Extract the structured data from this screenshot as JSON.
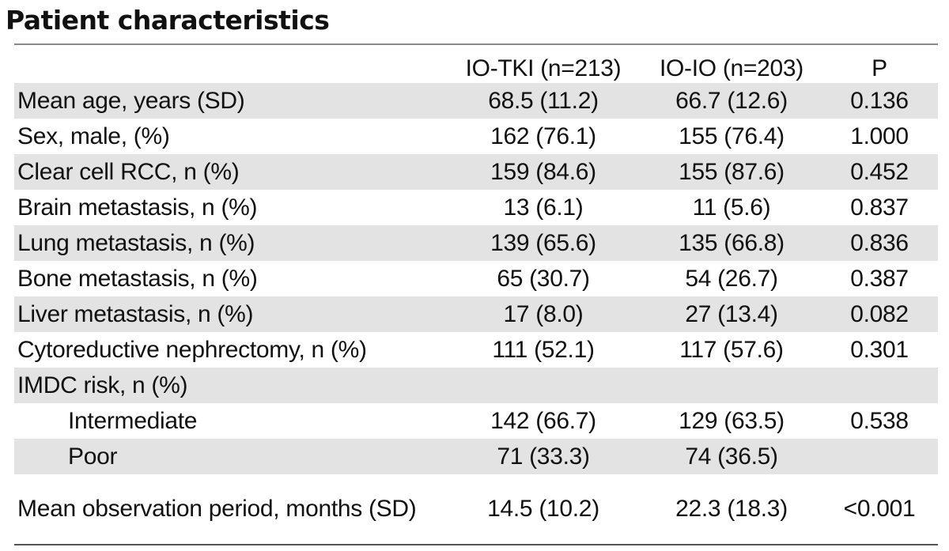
{
  "title": "Patient characteristics",
  "table": {
    "headers": [
      "",
      "IO-TKI (n=213)",
      "IO-IO (n=203)",
      "P"
    ],
    "rows": [
      {
        "label": "Mean age, years (SD)",
        "io_tki": "68.5 (11.2)",
        "io_io": "66.7 (12.6)",
        "p": "0.136"
      },
      {
        "label": "Sex, male, (%)",
        "io_tki": "162 (76.1)",
        "io_io": "155 (76.4)",
        "p": "1.000"
      },
      {
        "label": "Clear cell RCC, n (%)",
        "io_tki": "159 (84.6)",
        "io_io": "155 (87.6)",
        "p": "0.452"
      },
      {
        "label": "Brain metastasis, n (%)",
        "io_tki": "13 (6.1)",
        "io_io": "11 (5.6)",
        "p": "0.837"
      },
      {
        "label": "Lung metastasis, n (%)",
        "io_tki": "139 (65.6)",
        "io_io": "135 (66.8)",
        "p": "0.836"
      },
      {
        "label": "Bone metastasis, n (%)",
        "io_tki": "65 (30.7)",
        "io_io": "54 (26.7)",
        "p": "0.387"
      },
      {
        "label": "Liver metastasis, n (%)",
        "io_tki": "17 (8.0)",
        "io_io": "27 (13.4)",
        "p": "0.082"
      },
      {
        "label": "Cytoreductive nephrectomy, n (%)",
        "io_tki": "111 (52.1)",
        "io_io": "117 (57.6)",
        "p": "0.301"
      },
      {
        "label": "IMDC risk, n (%)",
        "io_tki": "",
        "io_io": "",
        "p": ""
      },
      {
        "label": "Intermediate",
        "io_tki": "142 (66.7)",
        "io_io": "129 (63.5)",
        "p": "0.538"
      },
      {
        "label": "Poor",
        "io_tki": "71 (33.3)",
        "io_io": "74 (36.5)",
        "p": ""
      },
      {
        "label": "Mean observation period, months (SD)",
        "io_tki": "14.5 (10.2)",
        "io_io": "22.3 (18.3)",
        "p": "<0.001"
      }
    ]
  }
}
